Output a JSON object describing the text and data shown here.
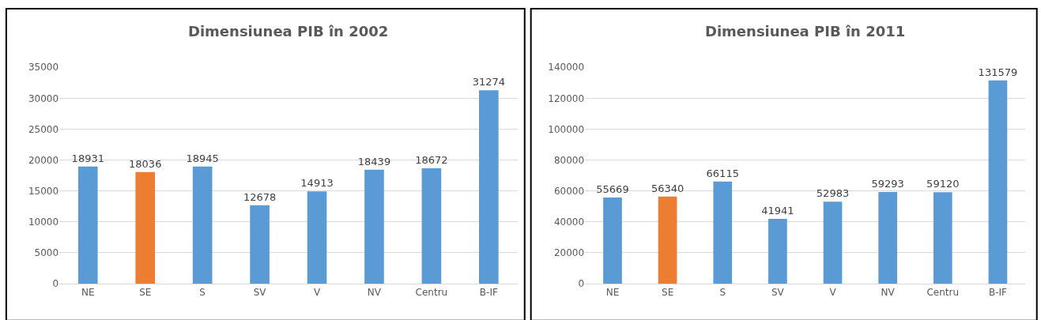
{
  "chart_data": [
    {
      "type": "bar",
      "title": "Dimensiunea PIB în 2002",
      "categories": [
        "NE",
        "SE",
        "S",
        "SV",
        "V",
        "NV",
        "Centru",
        "B-IF"
      ],
      "values": [
        18931,
        18036,
        18945,
        12678,
        14913,
        18439,
        18672,
        31274
      ],
      "colors": [
        "#5b9bd5",
        "#ed7d31",
        "#5b9bd5",
        "#5b9bd5",
        "#5b9bd5",
        "#5b9bd5",
        "#5b9bd5",
        "#5b9bd5"
      ],
      "ylim": [
        0,
        35000
      ],
      "yticks": [
        0,
        5000,
        10000,
        15000,
        20000,
        25000,
        30000,
        35000
      ],
      "grid": "y",
      "data_labels": true
    },
    {
      "type": "bar",
      "title": "Dimensiunea PIB în 2011",
      "categories": [
        "NE",
        "SE",
        "S",
        "SV",
        "V",
        "NV",
        "Centru",
        "B-IF"
      ],
      "values": [
        55669,
        56340,
        66115,
        41941,
        52983,
        59293,
        59120,
        131579
      ],
      "colors": [
        "#5b9bd5",
        "#ed7d31",
        "#5b9bd5",
        "#5b9bd5",
        "#5b9bd5",
        "#5b9bd5",
        "#5b9bd5",
        "#5b9bd5"
      ],
      "ylim": [
        0,
        140000
      ],
      "yticks": [
        0,
        20000,
        40000,
        60000,
        80000,
        100000,
        120000,
        140000
      ],
      "grid": "y",
      "data_labels": true
    }
  ]
}
